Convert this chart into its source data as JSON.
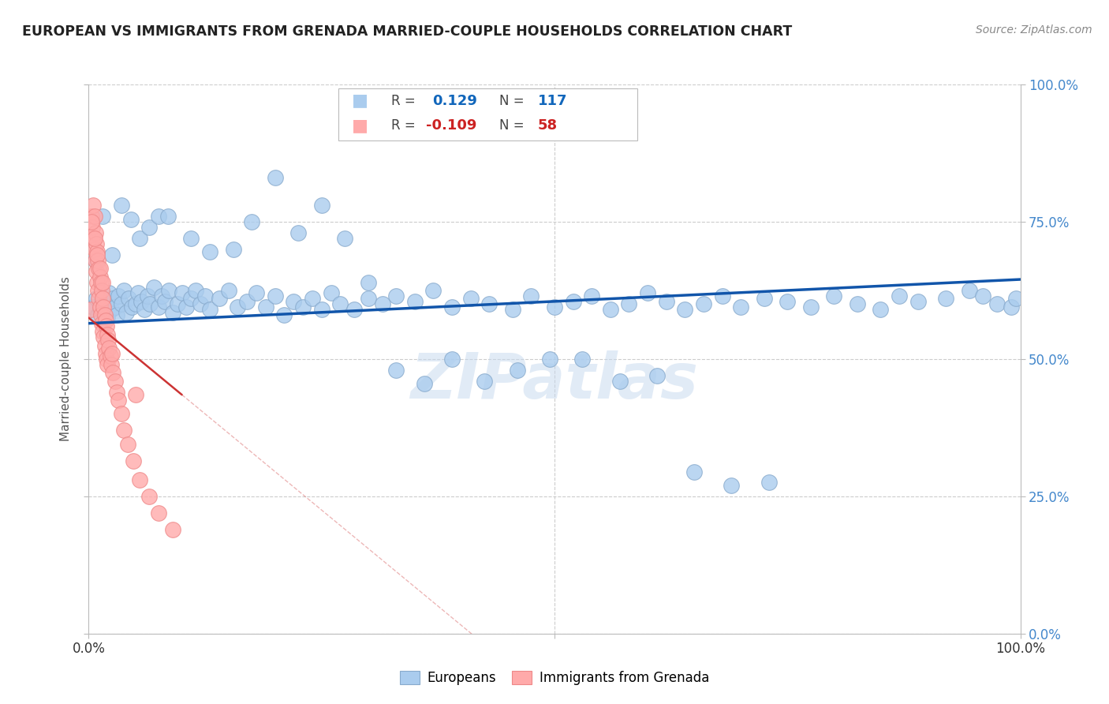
{
  "title": "EUROPEAN VS IMMIGRANTS FROM GRENADA MARRIED-COUPLE HOUSEHOLDS CORRELATION CHART",
  "source": "Source: ZipAtlas.com",
  "ylabel": "Married-couple Households",
  "xlim": [
    0,
    1.0
  ],
  "ylim": [
    0,
    1.0
  ],
  "ytick_positions": [
    0.0,
    0.25,
    0.5,
    0.75,
    1.0
  ],
  "ytick_labels": [
    "0.0%",
    "25.0%",
    "50.0%",
    "75.0%",
    "100.0%"
  ],
  "background_color": "#ffffff",
  "grid_color": "#cccccc",
  "blue_color": "#aaccee",
  "blue_edge_color": "#88aacc",
  "pink_color": "#ffaaaa",
  "pink_edge_color": "#ee8888",
  "blue_line_color": "#1155aa",
  "pink_line_color": "#cc3333",
  "watermark_text": "ZIPatlas",
  "legend_r_blue": "0.129",
  "legend_n_blue": "117",
  "legend_r_pink": "-0.109",
  "legend_n_pink": "58",
  "blue_trend_x0": 0.0,
  "blue_trend_x1": 1.0,
  "blue_trend_y0": 0.565,
  "blue_trend_y1": 0.645,
  "pink_trend_x0": 0.0,
  "pink_trend_x1": 0.1,
  "pink_trend_y0": 0.575,
  "pink_trend_y1": 0.435,
  "blue_scatter_x": [
    0.005,
    0.008,
    0.01,
    0.012,
    0.014,
    0.016,
    0.018,
    0.02,
    0.022,
    0.024,
    0.026,
    0.028,
    0.03,
    0.032,
    0.035,
    0.038,
    0.04,
    0.043,
    0.046,
    0.05,
    0.053,
    0.056,
    0.06,
    0.063,
    0.066,
    0.07,
    0.075,
    0.078,
    0.082,
    0.086,
    0.09,
    0.095,
    0.1,
    0.105,
    0.11,
    0.115,
    0.12,
    0.125,
    0.13,
    0.14,
    0.15,
    0.16,
    0.17,
    0.18,
    0.19,
    0.2,
    0.21,
    0.22,
    0.23,
    0.24,
    0.25,
    0.26,
    0.27,
    0.285,
    0.3,
    0.315,
    0.33,
    0.35,
    0.37,
    0.39,
    0.41,
    0.43,
    0.455,
    0.475,
    0.5,
    0.52,
    0.54,
    0.56,
    0.58,
    0.6,
    0.62,
    0.64,
    0.66,
    0.68,
    0.7,
    0.725,
    0.75,
    0.775,
    0.8,
    0.825,
    0.85,
    0.87,
    0.89,
    0.92,
    0.945,
    0.96,
    0.975,
    0.99,
    0.995,
    0.007,
    0.015,
    0.025,
    0.035,
    0.045,
    0.055,
    0.065,
    0.075,
    0.085,
    0.11,
    0.13,
    0.155,
    0.175,
    0.2,
    0.225,
    0.25,
    0.275,
    0.3,
    0.33,
    0.36,
    0.39,
    0.425,
    0.46,
    0.495,
    0.53,
    0.57,
    0.61,
    0.65,
    0.69,
    0.73
  ],
  "blue_scatter_y": [
    0.595,
    0.61,
    0.58,
    0.59,
    0.605,
    0.615,
    0.6,
    0.575,
    0.62,
    0.59,
    0.61,
    0.595,
    0.58,
    0.615,
    0.6,
    0.625,
    0.585,
    0.61,
    0.595,
    0.6,
    0.62,
    0.605,
    0.59,
    0.615,
    0.6,
    0.63,
    0.595,
    0.615,
    0.605,
    0.625,
    0.585,
    0.6,
    0.62,
    0.595,
    0.61,
    0.625,
    0.6,
    0.615,
    0.59,
    0.61,
    0.625,
    0.595,
    0.605,
    0.62,
    0.595,
    0.615,
    0.58,
    0.605,
    0.595,
    0.61,
    0.59,
    0.62,
    0.6,
    0.59,
    0.61,
    0.6,
    0.615,
    0.605,
    0.625,
    0.595,
    0.61,
    0.6,
    0.59,
    0.615,
    0.595,
    0.605,
    0.615,
    0.59,
    0.6,
    0.62,
    0.605,
    0.59,
    0.6,
    0.615,
    0.595,
    0.61,
    0.605,
    0.595,
    0.615,
    0.6,
    0.59,
    0.615,
    0.605,
    0.61,
    0.625,
    0.615,
    0.6,
    0.595,
    0.61,
    0.68,
    0.76,
    0.69,
    0.78,
    0.755,
    0.72,
    0.74,
    0.76,
    0.76,
    0.72,
    0.695,
    0.7,
    0.75,
    0.83,
    0.73,
    0.78,
    0.72,
    0.64,
    0.48,
    0.455,
    0.5,
    0.46,
    0.48,
    0.5,
    0.5,
    0.46,
    0.47,
    0.295,
    0.27,
    0.275
  ],
  "pink_scatter_x": [
    0.002,
    0.003,
    0.004,
    0.005,
    0.005,
    0.006,
    0.006,
    0.007,
    0.007,
    0.008,
    0.008,
    0.009,
    0.009,
    0.01,
    0.01,
    0.011,
    0.011,
    0.012,
    0.012,
    0.013,
    0.013,
    0.014,
    0.014,
    0.015,
    0.015,
    0.016,
    0.016,
    0.017,
    0.017,
    0.018,
    0.018,
    0.019,
    0.019,
    0.02,
    0.02,
    0.021,
    0.022,
    0.023,
    0.024,
    0.025,
    0.026,
    0.028,
    0.03,
    0.032,
    0.035,
    0.038,
    0.042,
    0.048,
    0.055,
    0.065,
    0.075,
    0.09,
    0.003,
    0.006,
    0.009,
    0.012,
    0.015,
    0.05
  ],
  "pink_scatter_y": [
    0.59,
    0.76,
    0.74,
    0.78,
    0.72,
    0.76,
    0.7,
    0.73,
    0.68,
    0.71,
    0.66,
    0.695,
    0.64,
    0.68,
    0.625,
    0.665,
    0.61,
    0.65,
    0.595,
    0.64,
    0.58,
    0.625,
    0.565,
    0.61,
    0.55,
    0.595,
    0.54,
    0.58,
    0.525,
    0.57,
    0.51,
    0.56,
    0.5,
    0.545,
    0.49,
    0.535,
    0.52,
    0.505,
    0.49,
    0.51,
    0.475,
    0.46,
    0.44,
    0.425,
    0.4,
    0.37,
    0.345,
    0.315,
    0.28,
    0.25,
    0.22,
    0.19,
    0.75,
    0.72,
    0.69,
    0.665,
    0.64,
    0.435
  ]
}
